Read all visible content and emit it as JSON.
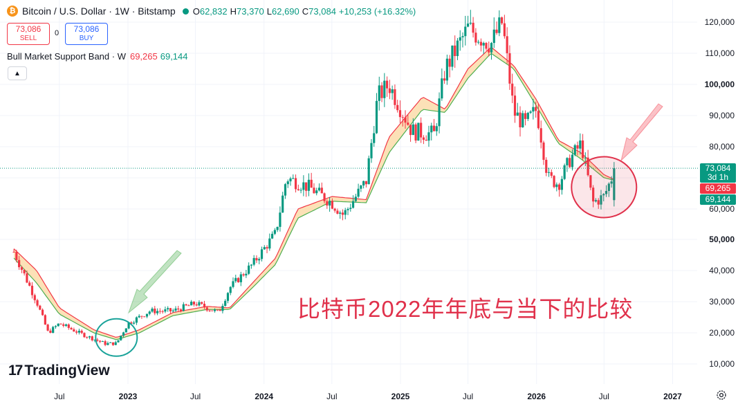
{
  "header": {
    "symbol": "Bitcoin / U.S. Dollar · 1W · Bitstamp",
    "open_key": "O",
    "open": "62,832",
    "high_key": "H",
    "high": "73,370",
    "low_key": "L",
    "low": "62,690",
    "close_key": "C",
    "close": "73,084",
    "change": "+10,253 (+16.32%)"
  },
  "trade": {
    "sell_price": "73,086",
    "sell_label": "SELL",
    "spread": "0",
    "buy_price": "73,086",
    "buy_label": "BUY"
  },
  "indicator": {
    "name": "Bull Market Support Band · W",
    "val1": "69,265",
    "val2": "69,144"
  },
  "tags": {
    "price": "73,084",
    "countdown": "3d 1h",
    "band_upper": "69,265",
    "band_lower": "69,144"
  },
  "caption": "比特币2022年年底与当下的比较",
  "logo": "TradingView",
  "colors": {
    "up": "#089981",
    "down": "#f23645",
    "band_fill": "#fbd79f",
    "red_line": "#f23645",
    "green_line": "#4caf50",
    "circle_green": "#1aa39a",
    "circle_red": "#e0314b"
  },
  "chart_data": {
    "type": "candlestick",
    "title": "",
    "ylim": [
      0,
      128000
    ],
    "y_ticks": [
      10000,
      20000,
      30000,
      40000,
      50000,
      60000,
      70000,
      80000,
      90000,
      100000,
      110000,
      120000
    ],
    "y_tick_labels": [
      "10,000",
      "20,000",
      "30,000",
      "40,000",
      "50,000",
      "60,000",
      "70,000",
      "80,000",
      "90,000",
      "100,000",
      "110,000",
      "120,000"
    ],
    "x_labels": [
      {
        "label": "Jul",
        "x": "2022-07"
      },
      {
        "label": "2023",
        "x": "2023-01"
      },
      {
        "label": "Jul",
        "x": "2023-07"
      },
      {
        "label": "2024",
        "x": "2024-01"
      },
      {
        "label": "Jul",
        "x": "2024-07"
      },
      {
        "label": "2025",
        "x": "2025-01"
      },
      {
        "label": "Jul",
        "x": "2025-07"
      },
      {
        "label": "2026",
        "x": "2026-01"
      },
      {
        "label": "Jul",
        "x": "2026-07"
      },
      {
        "label": "2027",
        "x": "2027-01"
      }
    ],
    "price_close": [
      [
        "2022-03",
        46000
      ],
      [
        "2022-05",
        30000
      ],
      [
        "2022-06",
        20000
      ],
      [
        "2022-07",
        23000
      ],
      [
        "2022-09",
        19500
      ],
      [
        "2022-11",
        16500
      ],
      [
        "2022-12",
        16600
      ],
      [
        "2023-01",
        23000
      ],
      [
        "2023-03",
        27000
      ],
      [
        "2023-05",
        27000
      ],
      [
        "2023-07",
        29500
      ],
      [
        "2023-09",
        26500
      ],
      [
        "2023-10",
        34500
      ],
      [
        "2023-12",
        42000
      ],
      [
        "2024-02",
        52000
      ],
      [
        "2024-03",
        70000
      ],
      [
        "2024-05",
        67000
      ],
      [
        "2024-07",
        62000
      ],
      [
        "2024-08",
        58000
      ],
      [
        "2024-10",
        69000
      ],
      [
        "2024-11",
        96000
      ],
      [
        "2024-12",
        100000
      ],
      [
        "2025-02",
        85000
      ],
      [
        "2025-04",
        84000
      ],
      [
        "2025-05",
        105000
      ],
      [
        "2025-07",
        118000
      ],
      [
        "2025-09",
        113000
      ],
      [
        "2025-10",
        120000
      ],
      [
        "2025-11",
        91000
      ],
      [
        "2025-12",
        87000
      ],
      [
        "2026-01",
        92000
      ],
      [
        "2026-02",
        70000
      ],
      [
        "2026-03",
        68000
      ],
      [
        "2026-04",
        76000
      ],
      [
        "2026-05",
        81000
      ],
      [
        "2026-06",
        62000
      ],
      [
        "2026-07",
        64000
      ],
      [
        "2026-08",
        73084
      ]
    ],
    "band_upper": [
      [
        "2022-03",
        47000
      ],
      [
        "2022-05",
        40000
      ],
      [
        "2022-07",
        28000
      ],
      [
        "2022-10",
        21000
      ],
      [
        "2022-12",
        18500
      ],
      [
        "2023-02",
        21000
      ],
      [
        "2023-05",
        26500
      ],
      [
        "2023-08",
        28500
      ],
      [
        "2023-10",
        28000
      ],
      [
        "2023-12",
        36000
      ],
      [
        "2024-02",
        44000
      ],
      [
        "2024-04",
        60000
      ],
      [
        "2024-07",
        64000
      ],
      [
        "2024-10",
        63000
      ],
      [
        "2024-12",
        83000
      ],
      [
        "2025-03",
        96000
      ],
      [
        "2025-05",
        92000
      ],
      [
        "2025-07",
        105000
      ],
      [
        "2025-09",
        112000
      ],
      [
        "2025-11",
        106000
      ],
      [
        "2026-01",
        95000
      ],
      [
        "2026-03",
        82000
      ],
      [
        "2026-05",
        78000
      ],
      [
        "2026-07",
        71000
      ],
      [
        "2026-08",
        69265
      ]
    ],
    "band_lower": [
      [
        "2022-03",
        44000
      ],
      [
        "2022-05",
        36000
      ],
      [
        "2022-07",
        26000
      ],
      [
        "2022-10",
        20000
      ],
      [
        "2022-12",
        17800
      ],
      [
        "2023-02",
        20000
      ],
      [
        "2023-05",
        25500
      ],
      [
        "2023-08",
        27500
      ],
      [
        "2023-10",
        27500
      ],
      [
        "2023-12",
        34500
      ],
      [
        "2024-02",
        42000
      ],
      [
        "2024-04",
        57000
      ],
      [
        "2024-07",
        62500
      ],
      [
        "2024-10",
        62000
      ],
      [
        "2024-12",
        78000
      ],
      [
        "2025-03",
        92000
      ],
      [
        "2025-05",
        91000
      ],
      [
        "2025-07",
        102000
      ],
      [
        "2025-09",
        110000
      ],
      [
        "2025-11",
        105000
      ],
      [
        "2026-01",
        93000
      ],
      [
        "2026-03",
        81000
      ],
      [
        "2026-05",
        76000
      ],
      [
        "2026-07",
        70000
      ],
      [
        "2026-08",
        69144
      ]
    ]
  }
}
